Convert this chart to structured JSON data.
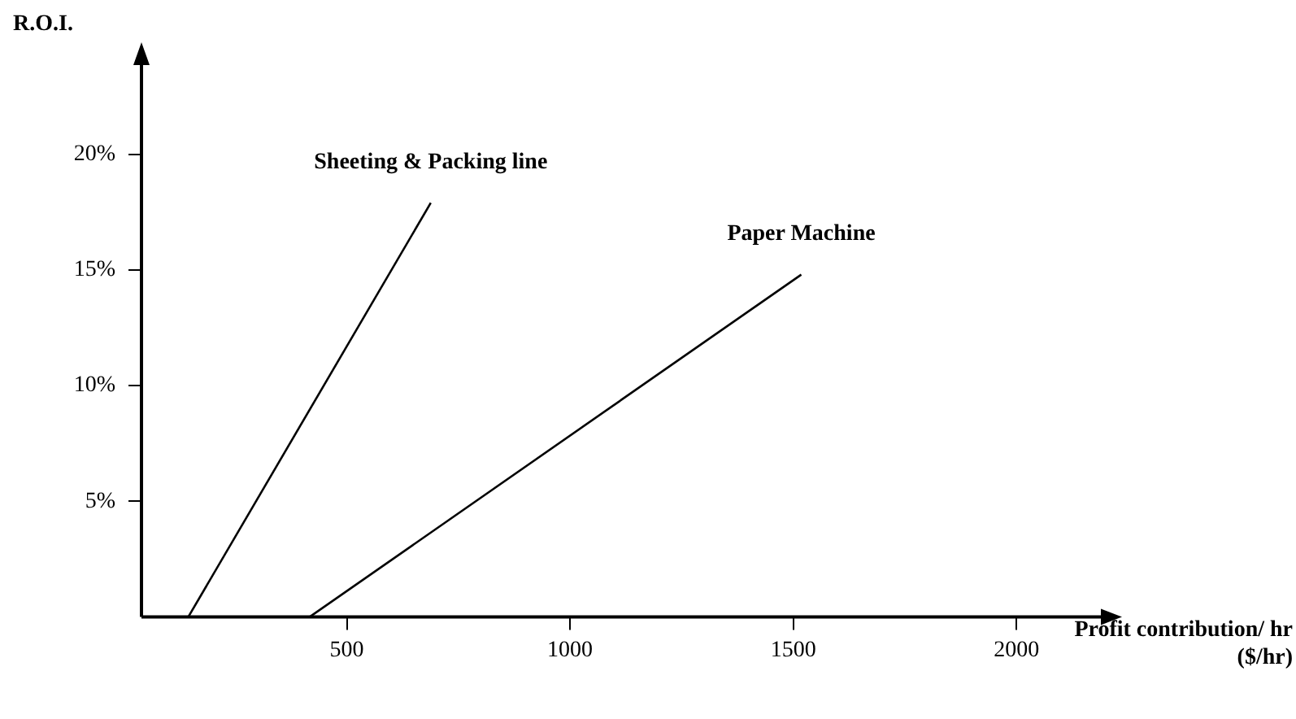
{
  "chart_data": {
    "type": "line",
    "xlabel": "Profit contribution/ hr ($/hr)",
    "ylabel": "R.O.I.",
    "xlim": [
      40,
      2200
    ],
    "ylim": [
      0,
      24
    ],
    "xticks": [
      500,
      1000,
      1500,
      2000
    ],
    "yticks": [
      {
        "value": 5,
        "label": "5%"
      },
      {
        "value": 10,
        "label": "10%"
      },
      {
        "value": 15,
        "label": "15%"
      },
      {
        "value": 20,
        "label": "20%"
      }
    ],
    "grid": false,
    "legend": false,
    "marker": "none",
    "line_style": "solid",
    "series": [
      {
        "name": "Sheeting & Packing line",
        "color": "#000000",
        "x": [
          145,
          688
        ],
        "values": [
          0,
          17.9
        ]
      },
      {
        "name": "Paper Machine",
        "color": "#000000",
        "x": [
          417,
          1518
        ],
        "values": [
          0,
          14.8
        ]
      }
    ]
  }
}
